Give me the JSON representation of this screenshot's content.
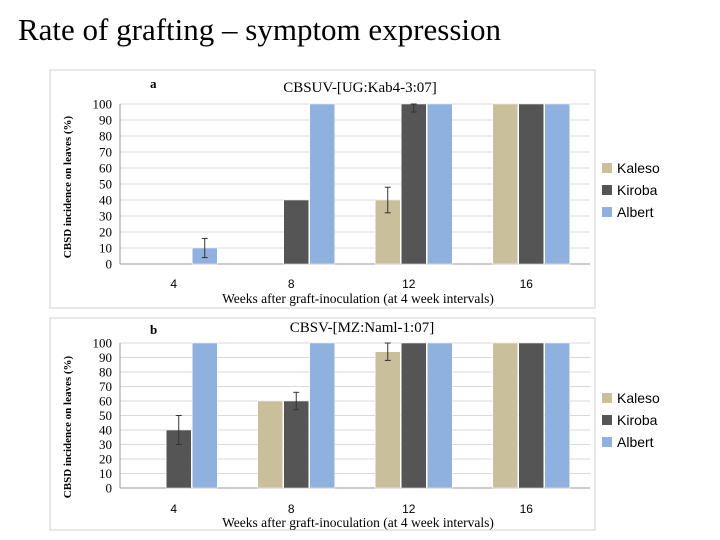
{
  "slide_title": "Rate of grafting – symptom expression",
  "legend_labels": [
    "Kaleso",
    "Kiroba",
    "Albert"
  ],
  "colors": {
    "Kaleso": "#c9bf9a",
    "Kiroba": "#555555",
    "Albert": "#8fb1df",
    "grid": "#d9d9d9",
    "axis": "#999999"
  },
  "chart_data": [
    {
      "type": "bar",
      "panel_label": "a",
      "title": "CBSUV-[UG:Kab4-3:07]",
      "xlabel": "Weeks after graft-inoculation (at 4 week intervals)",
      "ylabel": "CBSD incidence on leaves (%)",
      "categories": [
        "4",
        "8",
        "12",
        "16"
      ],
      "ylim": [
        0,
        100
      ],
      "yticks": [
        "0",
        "10",
        "20",
        "30",
        "40",
        "50",
        "60",
        "70",
        "80",
        "90",
        "100"
      ],
      "grid": true,
      "legend": "right",
      "series": [
        {
          "name": "Kaleso",
          "values": [
            0,
            0,
            40,
            100
          ],
          "errors": [
            0,
            0,
            8,
            0
          ]
        },
        {
          "name": "Kiroba",
          "values": [
            0,
            40,
            100,
            100
          ],
          "errors": [
            0,
            0,
            5,
            0
          ]
        },
        {
          "name": "Albert",
          "values": [
            10,
            100,
            100,
            100
          ],
          "errors": [
            6,
            0,
            0,
            0
          ]
        }
      ]
    },
    {
      "type": "bar",
      "panel_label": "b",
      "title": "CBSV-[MZ:Naml-1:07]",
      "xlabel": "Weeks after graft-inoculation (at 4 week intervals)",
      "ylabel": "CBSD incidence on leaves (%)",
      "categories": [
        "4",
        "8",
        "12",
        "16"
      ],
      "ylim": [
        0,
        100
      ],
      "yticks": [
        "0",
        "10",
        "20",
        "30",
        "40",
        "50",
        "60",
        "70",
        "80",
        "90",
        "100"
      ],
      "grid": true,
      "legend": "right",
      "series": [
        {
          "name": "Kaleso",
          "values": [
            0,
            60,
            94,
            100
          ],
          "errors": [
            0,
            0,
            6,
            0
          ]
        },
        {
          "name": "Kiroba",
          "values": [
            40,
            60,
            100,
            100
          ],
          "errors": [
            10,
            6,
            0,
            0
          ]
        },
        {
          "name": "Albert",
          "values": [
            100,
            100,
            100,
            100
          ],
          "errors": [
            0,
            0,
            0,
            0
          ]
        }
      ]
    }
  ]
}
